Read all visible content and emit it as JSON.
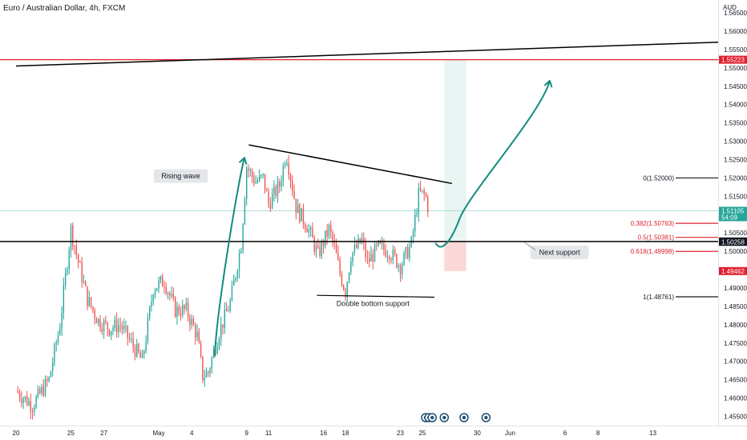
{
  "header": {
    "title": "Euro / Australian Dollar, 4h, FXCM"
  },
  "axis": {
    "currency": "AUD"
  },
  "chart_data": {
    "type": "candlestick",
    "title": "Euro / Australian Dollar, 4h, FXCM",
    "ylim": [
      1.4525,
      1.5685
    ],
    "xlim_days": [
      0,
      73
    ],
    "y_ticks": [
      1.565,
      1.56,
      1.555,
      1.55,
      1.545,
      1.54,
      1.535,
      1.53,
      1.525,
      1.52,
      1.515,
      1.51,
      1.505,
      1.5,
      1.495,
      1.49,
      1.485,
      1.48,
      1.475,
      1.47,
      1.465,
      1.46,
      1.455
    ],
    "y_tick_labels": [
      "1.56500",
      "1.56000",
      "1.55500",
      "1.55000",
      "1.54500",
      "1.54000",
      "1.53500",
      "1.53000",
      "1.52500",
      "1.52000",
      "1.51500",
      "1.51000",
      "1.50500",
      "1.50000",
      "1.49500",
      "1.49000",
      "1.48500",
      "1.48000",
      "1.47500",
      "1.47000",
      "1.46500",
      "1.46000",
      "1.45500"
    ],
    "x_ticks": [
      {
        "day": 0,
        "label": "20"
      },
      {
        "day": 5,
        "label": "25"
      },
      {
        "day": 8,
        "label": "27"
      },
      {
        "day": 13,
        "label": "May"
      },
      {
        "day": 16,
        "label": "4"
      },
      {
        "day": 21,
        "label": "9"
      },
      {
        "day": 23,
        "label": "11"
      },
      {
        "day": 28,
        "label": "16"
      },
      {
        "day": 30,
        "label": "18"
      },
      {
        "day": 35,
        "label": "23"
      },
      {
        "day": 37,
        "label": "25"
      },
      {
        "day": 42,
        "label": "30"
      },
      {
        "day": 45,
        "label": "Jun"
      },
      {
        "day": 50,
        "label": "6"
      },
      {
        "day": 53,
        "label": "8"
      },
      {
        "day": 58,
        "label": "13"
      }
    ],
    "anchors": [
      [
        0,
        1.462
      ],
      [
        1.5,
        1.458
      ],
      [
        3,
        1.465
      ],
      [
        4,
        1.48
      ],
      [
        5,
        1.506
      ],
      [
        5.6,
        1.498
      ],
      [
        6.5,
        1.487
      ],
      [
        7.5,
        1.481
      ],
      [
        8.5,
        1.479
      ],
      [
        9.5,
        1.48
      ],
      [
        10.5,
        1.475
      ],
      [
        11.5,
        1.47
      ],
      [
        12.5,
        1.49
      ],
      [
        13.5,
        1.492
      ],
      [
        14.5,
        1.484
      ],
      [
        15.5,
        1.484
      ],
      [
        16.5,
        1.477
      ],
      [
        17,
        1.466
      ],
      [
        17.5,
        1.467
      ],
      [
        18.5,
        1.478
      ],
      [
        19.5,
        1.486
      ],
      [
        20.5,
        1.502
      ],
      [
        21,
        1.523
      ],
      [
        21.8,
        1.519
      ],
      [
        22.5,
        1.52
      ],
      [
        23,
        1.513
      ],
      [
        24,
        1.518
      ],
      [
        24.6,
        1.527
      ],
      [
        25.5,
        1.512
      ],
      [
        26.5,
        1.507
      ],
      [
        27.5,
        1.499
      ],
      [
        28.5,
        1.506
      ],
      [
        29,
        1.501
      ],
      [
        29.5,
        1.494
      ],
      [
        30,
        1.489
      ],
      [
        30.5,
        1.499
      ],
      [
        31.5,
        1.503
      ],
      [
        32,
        1.497
      ],
      [
        33,
        1.501
      ],
      [
        34,
        1.5
      ],
      [
        35,
        1.496
      ],
      [
        35.5,
        1.499
      ],
      [
        36,
        1.502
      ],
      [
        36.7,
        1.516
      ],
      [
        37.3,
        1.515
      ],
      [
        37.6,
        1.511
      ]
    ],
    "last_price": 1.51105,
    "countdown": "54:09",
    "price_tags": [
      {
        "value": 1.55223,
        "label": "1.55223",
        "color": "#e0202f"
      },
      {
        "value": 1.51105,
        "label": "1.51105",
        "sub": "54:09",
        "color": "#26a69a"
      },
      {
        "value": 1.50269,
        "label": "1.50269",
        "color": "#131722"
      },
      {
        "value": 1.50258,
        "label": "1.50258",
        "color": "#131722"
      },
      {
        "value": 1.49462,
        "label": "1.49462",
        "color": "#e0202f"
      }
    ],
    "fib": [
      {
        "value": 1.52,
        "label": "0(1.52000)",
        "color": "#131722"
      },
      {
        "value": 1.50763,
        "label": "0.382(1.50763)",
        "color": "#e0202f"
      },
      {
        "value": 1.50381,
        "label": "0.5(1.50381)",
        "color": "#e0202f"
      },
      {
        "value": 1.49998,
        "label": "0.618(1.49998)",
        "color": "#e0202f"
      },
      {
        "value": 1.48761,
        "label": "1(1.48761)",
        "color": "#131722"
      }
    ],
    "lines": [
      {
        "kind": "resistance",
        "value": 1.55223,
        "color": "#e0202f"
      },
      {
        "kind": "support",
        "value": 1.50269,
        "color": "#000000"
      },
      {
        "kind": "trend-rising",
        "from": [
          0,
          1.5505
        ],
        "to": [
          73,
          1.557
        ]
      },
      {
        "kind": "triangle-top",
        "from": [
          21.2,
          1.529
        ],
        "to": [
          39.7,
          1.5185
        ]
      },
      {
        "kind": "double-bottom",
        "from": [
          27.4,
          1.488
        ],
        "to": [
          38.1,
          1.4875
        ]
      }
    ],
    "long_position": {
      "from_day": 39,
      "to_day": 41,
      "entry": 1.50269,
      "target": 1.55223,
      "stop": 1.49462
    },
    "annotations": [
      {
        "label": "Rising wave",
        "day": 15,
        "value": 1.5205
      },
      {
        "label": "Double bottom support",
        "day": 32.5,
        "value": 1.4858
      },
      {
        "label": "Next support",
        "day": 49.5,
        "value": 1.4997
      }
    ],
    "event_icons": [
      37.3,
      37.6,
      37.9,
      39,
      40.8,
      42.8
    ]
  },
  "colors": {
    "up": "#26a69a",
    "down": "#ef5350",
    "arrow": "#128c7e",
    "target_zone": "#e8f5f3",
    "stop_zone": "#fcd7d7",
    "resistance": "#e0202f",
    "line": "#000000",
    "axis_text": "#131722",
    "current_line": "#b2dfdb",
    "event_icon": "#1b4f72"
  }
}
